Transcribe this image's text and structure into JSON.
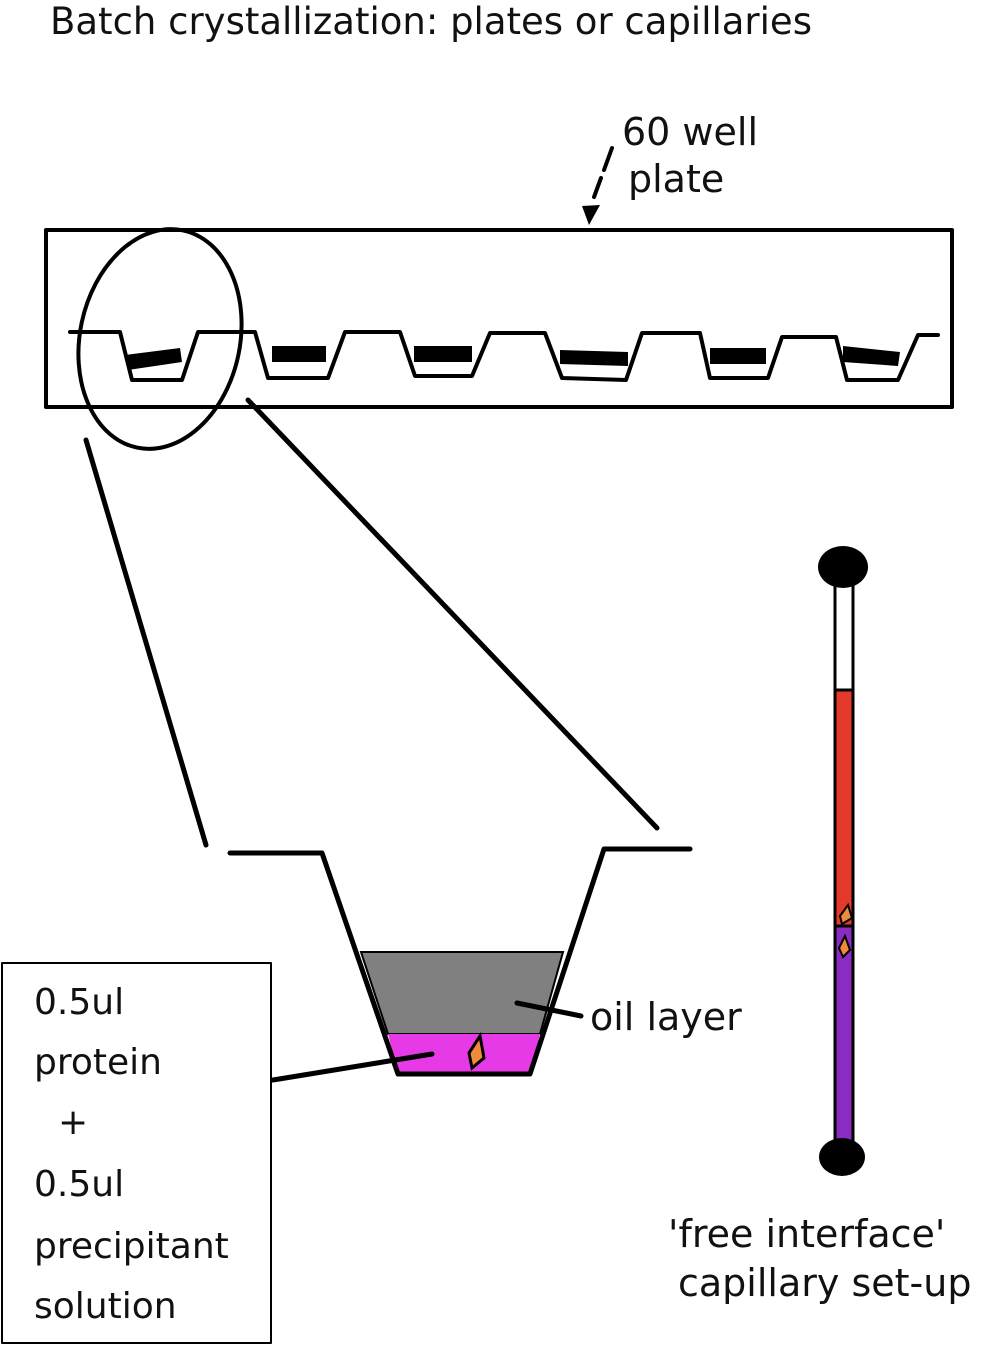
{
  "title": "Batch crystallization: plates or capillaries",
  "plate_label": [
    "60 well",
    "plate"
  ],
  "oil_label": "oil layer",
  "drop_box": {
    "line1": "0.5ul",
    "line2": "protein",
    "line3": "+",
    "line4": "0.5ul",
    "line5": "precipitant",
    "line6": "solution"
  },
  "capillary_label": [
    "'free interface'",
    "capillary set-up"
  ],
  "colors": {
    "oil": "#808080",
    "drop": "#e63ae6",
    "crystal": "#f08a3c",
    "capillary_top": "#e33a2c",
    "capillary_bottom": "#8a2cc2",
    "ink": "#000000"
  }
}
